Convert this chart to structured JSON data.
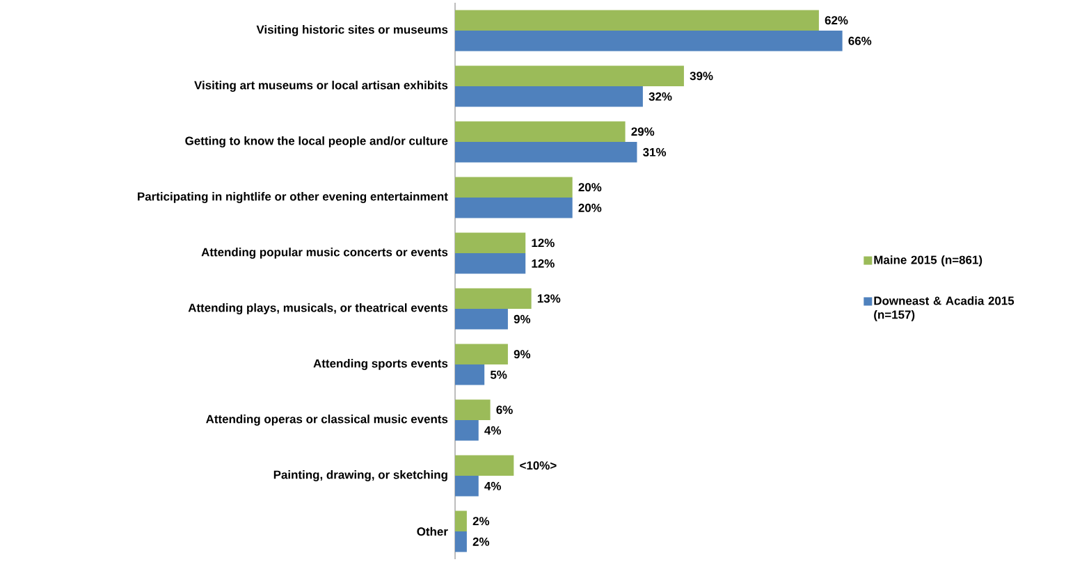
{
  "chart_data": {
    "type": "bar",
    "orientation": "horizontal",
    "categories": [
      "Visiting historic sites or museums",
      "Visiting art museums or local artisan exhibits",
      "Getting to know the local people and/or culture",
      "Participating in nightlife or other evening entertainment",
      "Attending popular music concerts or events",
      "Attending plays, musicals, or theatrical events",
      "Attending sports events",
      "Attending operas or classical music events",
      "Painting, drawing, or sketching",
      "Other"
    ],
    "series": [
      {
        "name": "Maine 2015 (n=861)",
        "color": "#9bbb59",
        "values": [
          62,
          39,
          29,
          20,
          12,
          13,
          9,
          6,
          10,
          2
        ],
        "value_labels": [
          "62%",
          "39%",
          "29%",
          "20%",
          "12%",
          "13%",
          "9%",
          "6%",
          "<10%>",
          "2%"
        ]
      },
      {
        "name": "Downeast & Acadia 2015 (n=157)",
        "color": "#4f81bd",
        "values": [
          66,
          32,
          31,
          20,
          12,
          9,
          5,
          4,
          4,
          2
        ],
        "value_labels": [
          "66%",
          "32%",
          "31%",
          "20%",
          "12%",
          "9%",
          "5%",
          "4%",
          "4%",
          "2%"
        ]
      }
    ],
    "legend": "right"
  }
}
